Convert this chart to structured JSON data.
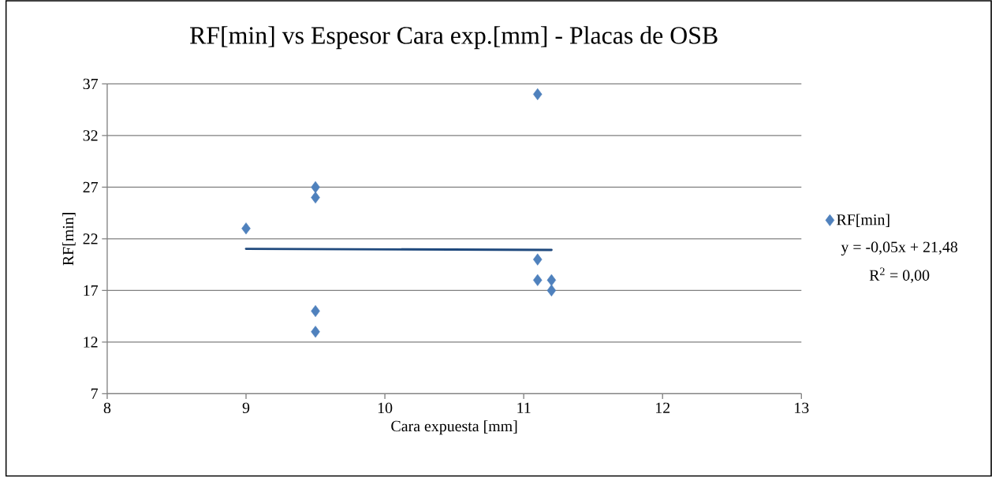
{
  "chart_data": {
    "type": "scatter",
    "title": "RF[min] vs Espesor Cara exp.[mm] - Placas de OSB",
    "xlabel": "Cara expuesta [mm]",
    "ylabel": "RF[min]",
    "series": [
      {
        "name": "RF[min]",
        "color": "#4f81bd",
        "marker": "diamond",
        "x": [
          9,
          9.5,
          9.5,
          9.5,
          9.5,
          11.1,
          11.1,
          11.1,
          11.2,
          11.2
        ],
        "values": [
          23,
          27,
          26,
          15,
          13,
          36,
          20,
          18,
          18,
          17
        ]
      },
      {
        "type": "line",
        "color": "#1f497d",
        "marker": "none",
        "x": [
          9,
          11.2
        ],
        "values": [
          21.03,
          20.92
        ]
      }
    ],
    "xlim": [
      8,
      13
    ],
    "ylim": [
      7,
      37
    ],
    "xticks": [
      8,
      9,
      10,
      11,
      12,
      13
    ],
    "yticks": [
      7,
      12,
      17,
      22,
      27,
      32,
      37
    ],
    "grid": "y",
    "legend": "right",
    "annotations": [
      "y = -0,05x + 21,48",
      "R$^{2}$ = 0,00"
    ]
  }
}
